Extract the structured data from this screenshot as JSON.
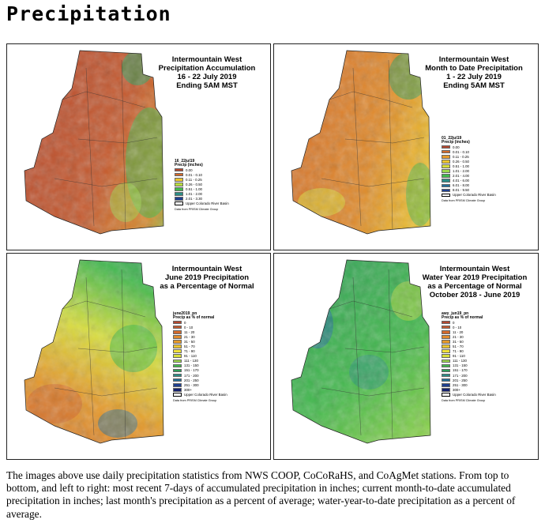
{
  "page": {
    "title": "Precipitation",
    "caption": "The images above use daily precipitation statistics from NWS COOP, CoCoRaHS, and CoAgMet stations. From top to bottom, and left to right: most recent 7-days of accumulated precipitation in inches; current month-to-date accumulated precipitation in inches; last month's precipitation as a percent of average; water-year-to-date precipitation as a percent of average."
  },
  "colors": {
    "c0": "#b5482f",
    "c1": "#d26a2c",
    "c2": "#e59a2b",
    "c3": "#ecc52f",
    "c4": "#d8df3b",
    "c5": "#9ed84a",
    "c6": "#42b94c",
    "c7": "#2f9d5a",
    "c8": "#2b8c85",
    "c9": "#216e9a",
    "c10": "#1f3f8f",
    "c11": "#14206e"
  },
  "panels": [
    {
      "id": "p1",
      "title_lines": [
        "Intermountain West",
        "Precipitation Accumulation",
        "16 - 22 July 2019",
        "Ending 5AM MST"
      ],
      "legend": {
        "layer": "16_22jul19",
        "header": "Precip (inches)",
        "items": [
          {
            "label": "0.00",
            "color": "#b5482f"
          },
          {
            "label": "0.01 - 0.10",
            "color": "#d26a2c"
          },
          {
            "label": "0.11 - 0.25",
            "color": "#ecc52f"
          },
          {
            "label": "0.26 - 0.50",
            "color": "#b9dd3e"
          },
          {
            "label": "0.51 - 1.00",
            "color": "#42b94c"
          },
          {
            "label": "1.01 - 2.00",
            "color": "#2b8c85"
          },
          {
            "label": "2.01 - 3.30",
            "color": "#1f3f8f"
          }
        ],
        "basin": "Upper Colorado River Basin",
        "credit": "Data from PRISM Climate Group"
      }
    },
    {
      "id": "p2",
      "title_lines": [
        "Intermountain West",
        "Month to Date Precipitation",
        "1 - 22 July 2019",
        "Ending 5AM MST"
      ],
      "legend": {
        "layer": "01_22jul19",
        "header": "Precip (inches)",
        "items": [
          {
            "label": "0.00",
            "color": "#b5482f"
          },
          {
            "label": "0.01 - 0.10",
            "color": "#d26a2c"
          },
          {
            "label": "0.11 - 0.25",
            "color": "#e59a2b"
          },
          {
            "label": "0.26 - 0.50",
            "color": "#ecc52f"
          },
          {
            "label": "0.51 - 1.00",
            "color": "#d8df3b"
          },
          {
            "label": "1.01 - 2.00",
            "color": "#9ed84a"
          },
          {
            "label": "2.01 - 4.00",
            "color": "#42b94c"
          },
          {
            "label": "4.01 - 6.00",
            "color": "#2b8c85"
          },
          {
            "label": "6.01 - 8.00",
            "color": "#216e9a"
          },
          {
            "label": "8.01 - 9.50",
            "color": "#1f3f8f"
          }
        ],
        "basin": "Upper Colorado River Basin",
        "credit": "Data from PRISM Climate Group"
      }
    },
    {
      "id": "p3",
      "title_lines": [
        "Intermountain West",
        "June 2019 Precipitation",
        "as a Percentage of Normal"
      ],
      "legend": {
        "layer": "june2019_pn",
        "header": "Precip as % of normal",
        "items": [
          {
            "label": "0",
            "color": "#b5482f"
          },
          {
            "label": "0 - 10",
            "color": "#c55a2e"
          },
          {
            "label": "11 - 20",
            "color": "#d26a2c"
          },
          {
            "label": "21 - 30",
            "color": "#e08a2b"
          },
          {
            "label": "31 - 50",
            "color": "#e59a2b"
          },
          {
            "label": "51 - 70",
            "color": "#ecc52f"
          },
          {
            "label": "71 - 90",
            "color": "#f0e03a"
          },
          {
            "label": "91 - 110",
            "color": "#d8df3b"
          },
          {
            "label": "111 - 130",
            "color": "#9ed84a"
          },
          {
            "label": "131 - 150",
            "color": "#42b94c"
          },
          {
            "label": "151 - 170",
            "color": "#2f9d5a"
          },
          {
            "label": "171 - 200",
            "color": "#2b8c85"
          },
          {
            "label": "201 - 250",
            "color": "#216e9a"
          },
          {
            "label": "251 - 300",
            "color": "#1f3f8f"
          },
          {
            "label": "300+",
            "color": "#14206e"
          }
        ],
        "basin": "Upper Colorado River Basin",
        "credit": "Data from PRISM Climate Group"
      }
    },
    {
      "id": "p4",
      "title_lines": [
        "Intermountain West",
        "Water Year 2019 Precipitation",
        "as a Percentage of Normal",
        "October 2018 - June 2019"
      ],
      "legend": {
        "layer": "awy_jun19_pn",
        "header": "Precip as % of normal",
        "items": [
          {
            "label": "0",
            "color": "#b5482f"
          },
          {
            "label": "0 - 10",
            "color": "#c55a2e"
          },
          {
            "label": "11 - 20",
            "color": "#d26a2c"
          },
          {
            "label": "21 - 30",
            "color": "#e08a2b"
          },
          {
            "label": "31 - 50",
            "color": "#e59a2b"
          },
          {
            "label": "51 - 70",
            "color": "#ecc52f"
          },
          {
            "label": "71 - 90",
            "color": "#f0e03a"
          },
          {
            "label": "91 - 110",
            "color": "#d8df3b"
          },
          {
            "label": "111 - 130",
            "color": "#9ed84a"
          },
          {
            "label": "131 - 150",
            "color": "#42b94c"
          },
          {
            "label": "151 - 170",
            "color": "#2f9d5a"
          },
          {
            "label": "171 - 200",
            "color": "#2b8c85"
          },
          {
            "label": "201 - 250",
            "color": "#216e9a"
          },
          {
            "label": "251 - 300",
            "color": "#1f3f8f"
          },
          {
            "label": "300+",
            "color": "#14206e"
          }
        ],
        "basin": "Upper Colorado River Basin",
        "credit": "Data from PRISM Climate Group"
      }
    }
  ]
}
